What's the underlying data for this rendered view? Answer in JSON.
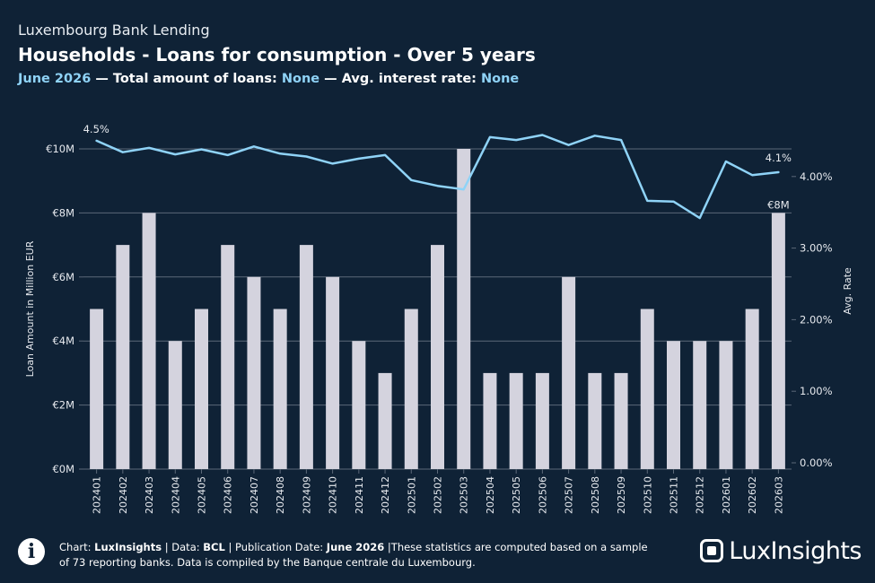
{
  "header": {
    "eyebrow": "Luxembourg Bank Lending",
    "title": "Households - Loans for consumption - Over 5 years",
    "period": "June 2026",
    "sep1": " — Total amount of loans: ",
    "total_value": "None",
    "sep2": " — Avg. interest rate: ",
    "rate_value": "None"
  },
  "footer": {
    "info_glyph": "i",
    "chart_label": "Chart: ",
    "chart_source": "LuxInsights",
    "data_label": " | Data: ",
    "data_source": "BCL",
    "pub_label": " | Publication Date: ",
    "pub_date": "June 2026",
    "note": " |These statistics are computed based on a sample of 73 reporting banks. Data is compiled by the Banque centrale du Luxembourg.",
    "logo_text": "LuxInsights"
  },
  "colors": {
    "background": "#0f2236",
    "bars": "#d4d3de",
    "line": "#8fd3f7",
    "grid": "#5b6878",
    "text": "#e6e9ee"
  },
  "chart_data": {
    "type": "bar+line",
    "categories": [
      "202401",
      "202402",
      "202403",
      "202404",
      "202405",
      "202406",
      "202407",
      "202408",
      "202409",
      "202410",
      "202411",
      "202412",
      "202501",
      "202502",
      "202503",
      "202504",
      "202505",
      "202506",
      "202507",
      "202508",
      "202509",
      "202510",
      "202511",
      "202512",
      "202601",
      "202602",
      "202603"
    ],
    "series": [
      {
        "name": "Loan Amount",
        "type": "bar",
        "axis": "left",
        "values": [
          5,
          7,
          8,
          4,
          5,
          7,
          6,
          5,
          7,
          6,
          4,
          3,
          5,
          7,
          10,
          3,
          3,
          3,
          6,
          3,
          3,
          5,
          4,
          4,
          4,
          5,
          8
        ]
      },
      {
        "name": "Avg. Rate",
        "type": "line",
        "axis": "right",
        "values": [
          4.5,
          4.34,
          4.4,
          4.31,
          4.38,
          4.3,
          4.42,
          4.32,
          4.28,
          4.18,
          4.25,
          4.3,
          3.95,
          3.87,
          3.82,
          4.55,
          4.51,
          4.58,
          4.44,
          4.57,
          4.51,
          3.66,
          3.65,
          3.42,
          4.21,
          4.02,
          4.06
        ]
      }
    ],
    "ylabel": "Loan Amount in Million EUR",
    "y2label": "Avg. Rate",
    "ylim": [
      0,
      10
    ],
    "y2lim": [
      0,
      4.5
    ],
    "yticks": [
      "€0M",
      "€2M",
      "€4M",
      "€6M",
      "€8M",
      "€10M"
    ],
    "y2ticks": [
      "0.00%",
      "1.00%",
      "2.00%",
      "3.00%",
      "4.00%"
    ],
    "annotations": {
      "line_first": "4.5%",
      "line_last": "4.1%",
      "bar_last": "€8M"
    },
    "grid": true
  }
}
